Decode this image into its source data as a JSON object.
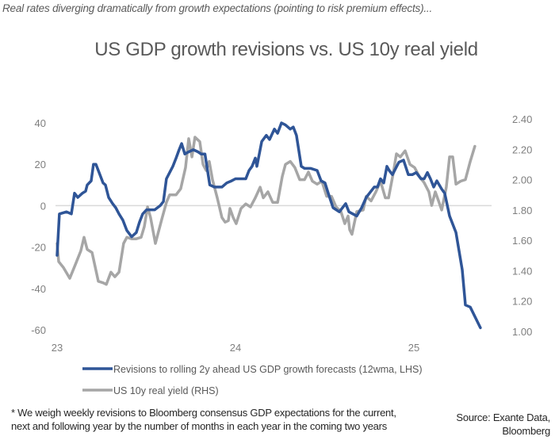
{
  "header": {
    "subtitle": "Real rates diverging dramatically from growth expectations (pointing to risk premium effects)...",
    "title": "US GDP growth revisions vs. US 10y real yield"
  },
  "footer": {
    "note_line1": "* We weigh weekly revisions to Bloomberg consensus GDP expectations for the current,",
    "note_line2": "next and following year by the number of months in each year in the coming two years",
    "source_line1": "Source: Exante Data,",
    "source_line2": "Bloomberg"
  },
  "colors": {
    "blue": "#2f5597",
    "gray": "#a6a6a6",
    "zero_line": "#d9d9d9"
  },
  "chart_data": {
    "type": "line",
    "title": "US GDP growth revisions vs. US 10y real yield",
    "xlabel": "",
    "ylabel": "",
    "x_ticks": [
      "23",
      "24",
      "25"
    ],
    "x_tick_values": [
      23,
      24,
      25
    ],
    "xlim": [
      23,
      25.47
    ],
    "y_left": {
      "ticks": [
        "40",
        "20",
        "0",
        "-20",
        "-40",
        "-60"
      ],
      "tick_values": [
        40,
        20,
        0,
        -20,
        -40,
        -60
      ],
      "ylim": [
        -60,
        40
      ]
    },
    "y_right": {
      "ticks": [
        "2.40",
        "2.20",
        "2.00",
        "1.80",
        "1.60",
        "1.40",
        "1.20",
        "1.00"
      ],
      "tick_values": [
        2.4,
        2.2,
        2.0,
        1.8,
        1.6,
        1.4,
        1.2,
        1.0
      ],
      "ylim": [
        1.0,
        2.4
      ]
    },
    "grid": false,
    "legend_position": "bottom",
    "series": [
      {
        "name": "Revisions to rolling 2y ahead US GDP growth forecasts (12wma, LHS)",
        "axis": "left",
        "color": "#2f5597",
        "x": [
          23.0,
          23.013,
          23.053,
          23.08,
          23.098,
          23.116,
          23.142,
          23.16,
          23.169,
          23.191,
          23.204,
          23.218,
          23.24,
          23.258,
          23.271,
          23.289,
          23.311,
          23.329,
          23.347,
          23.369,
          23.391,
          23.418,
          23.444,
          23.462,
          23.48,
          23.502,
          23.547,
          23.578,
          23.596,
          23.613,
          23.631,
          23.649,
          23.667,
          23.684,
          23.698,
          23.716,
          23.738,
          23.764,
          23.79,
          23.807,
          23.829,
          23.856,
          23.882,
          23.924,
          23.951,
          23.978,
          24.0,
          24.031,
          24.058,
          24.076,
          24.093,
          24.111,
          24.12,
          24.147,
          24.173,
          24.191,
          24.218,
          24.236,
          24.258,
          24.28,
          24.307,
          24.324,
          24.342,
          24.369,
          24.387,
          24.422,
          24.458,
          24.48,
          24.502,
          24.52,
          24.547,
          24.582,
          24.618,
          24.636,
          24.68,
          24.707,
          24.733,
          24.751,
          24.778,
          24.796,
          24.813,
          24.831,
          24.849,
          24.862,
          24.88,
          24.898,
          24.916,
          24.942,
          24.969,
          24.991,
          25.013,
          25.04,
          25.058,
          25.076,
          25.093,
          25.111,
          25.129,
          25.156,
          25.173,
          25.2,
          25.236,
          25.271,
          25.289,
          25.316,
          25.373
        ],
        "values": [
          -24,
          -4,
          -3,
          -4,
          6,
          4,
          6,
          7,
          10,
          12,
          20,
          20,
          15,
          11,
          10,
          4,
          1,
          -1,
          -4,
          -7,
          -12,
          -15,
          -13,
          -8,
          -4,
          -2,
          -2,
          0,
          2,
          13,
          16,
          19,
          23,
          27,
          30,
          25,
          26,
          27,
          26,
          25,
          25,
          10,
          9,
          9,
          11,
          12,
          13,
          13,
          13,
          17,
          19,
          23,
          19,
          31,
          34,
          32,
          37,
          35,
          40,
          39,
          37,
          38,
          34,
          19,
          18,
          18,
          17,
          12,
          11,
          6,
          -1,
          -3,
          1,
          -3,
          -5,
          -1,
          4,
          6,
          9,
          9,
          13,
          11,
          19,
          17,
          15,
          18,
          21,
          22,
          15,
          15,
          16,
          13,
          13,
          16,
          13,
          9,
          12,
          8,
          6,
          -5,
          -13,
          -31,
          -48,
          -49,
          -59
        ]
      },
      {
        "name": "US 10y real yield (RHS)",
        "axis": "right",
        "color": "#a6a6a6",
        "x": [
          23.0,
          23.009,
          23.036,
          23.071,
          23.102,
          23.133,
          23.151,
          23.169,
          23.196,
          23.231,
          23.258,
          23.276,
          23.302,
          23.324,
          23.347,
          23.373,
          23.391,
          23.418,
          23.444,
          23.471,
          23.489,
          23.507,
          23.524,
          23.551,
          23.587,
          23.613,
          23.631,
          23.667,
          23.693,
          23.72,
          23.738,
          23.756,
          23.773,
          23.8,
          23.818,
          23.836,
          23.853,
          23.871,
          23.898,
          23.924,
          23.942,
          23.96,
          23.969,
          23.987,
          24.004,
          24.031,
          24.058,
          24.084,
          24.111,
          24.138,
          24.156,
          24.182,
          24.209,
          24.236,
          24.262,
          24.28,
          24.307,
          24.333,
          24.36,
          24.387,
          24.409,
          24.431,
          24.458,
          24.484,
          24.511,
          24.538,
          24.564,
          24.591,
          24.613,
          24.631,
          24.64,
          24.653,
          24.68,
          24.716,
          24.733,
          24.76,
          24.787,
          24.813,
          24.84,
          24.858,
          24.884,
          24.902,
          24.924,
          24.951,
          24.978,
          25.004,
          25.031,
          25.058,
          25.084,
          25.1,
          25.12,
          25.138,
          25.156,
          25.182,
          25.2,
          25.218,
          25.236,
          25.262,
          25.289,
          25.316,
          25.342
        ],
        "values": [
          1.58,
          1.46,
          1.42,
          1.35,
          1.44,
          1.53,
          1.62,
          1.54,
          1.52,
          1.33,
          1.32,
          1.31,
          1.39,
          1.36,
          1.39,
          1.58,
          1.62,
          1.61,
          1.61,
          1.62,
          1.69,
          1.82,
          1.75,
          1.58,
          1.74,
          1.85,
          1.9,
          1.9,
          1.94,
          2.08,
          2.27,
          2.15,
          2.28,
          2.25,
          2.1,
          2.06,
          2.12,
          2.0,
          1.88,
          1.75,
          1.72,
          1.73,
          1.81,
          1.75,
          1.71,
          1.81,
          1.84,
          1.82,
          1.88,
          1.95,
          1.88,
          1.92,
          1.85,
          1.85,
          2.02,
          2.1,
          2.12,
          2.08,
          2.0,
          2.0,
          2.05,
          1.99,
          1.97,
          1.99,
          1.89,
          1.89,
          1.82,
          1.79,
          1.71,
          1.76,
          1.67,
          1.64,
          1.79,
          1.8,
          1.89,
          1.86,
          1.92,
          1.99,
          1.88,
          1.88,
          2.04,
          2.17,
          2.15,
          2.19,
          2.1,
          2.08,
          2.02,
          1.98,
          1.92,
          1.83,
          1.92,
          1.86,
          1.8,
          1.95,
          2.15,
          2.15,
          1.97,
          1.99,
          2.0,
          2.12,
          2.22
        ]
      }
    ]
  }
}
